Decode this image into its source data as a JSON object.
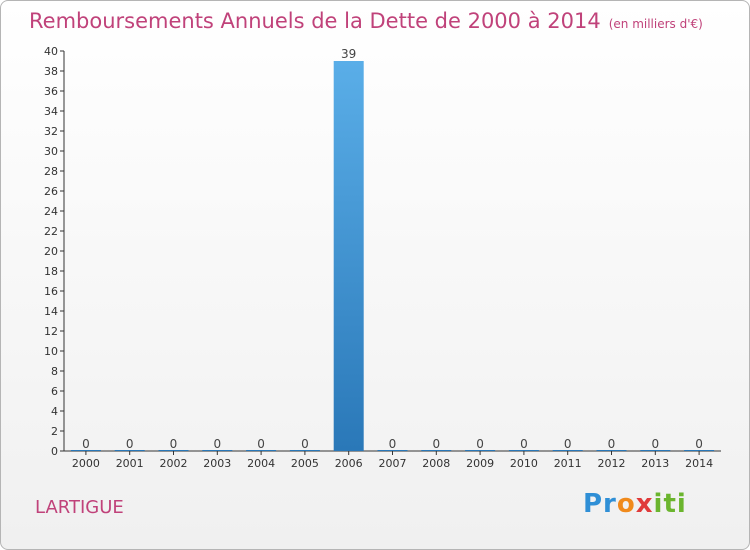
{
  "title": "Remboursements Annuels de la Dette de 2000 à 2014",
  "unit_note": "(en milliers d'€)",
  "commune": "LARTIGUE",
  "logo": {
    "parts": [
      "Pr",
      "o",
      "x",
      "iti"
    ]
  },
  "colors": {
    "accent": "#c0427a",
    "bar_top": "#5aaee8",
    "bar_bottom": "#2a78b8"
  },
  "chart_data": {
    "type": "bar",
    "title": "Remboursements Annuels de la Dette de 2000 à 2014",
    "subtitle": "(en milliers d'€)",
    "categories": [
      "2000",
      "2001",
      "2002",
      "2003",
      "2004",
      "2005",
      "2006",
      "2007",
      "2008",
      "2009",
      "2010",
      "2011",
      "2012",
      "2013",
      "2014"
    ],
    "values": [
      0,
      0,
      0,
      0,
      0,
      0,
      39,
      0,
      0,
      0,
      0,
      0,
      0,
      0,
      0
    ],
    "ylim": [
      0,
      40
    ],
    "yticks": [
      0,
      2,
      4,
      6,
      8,
      10,
      12,
      14,
      16,
      18,
      20,
      22,
      24,
      26,
      28,
      30,
      32,
      34,
      36,
      38,
      40
    ],
    "grid": false,
    "legend": "none"
  }
}
